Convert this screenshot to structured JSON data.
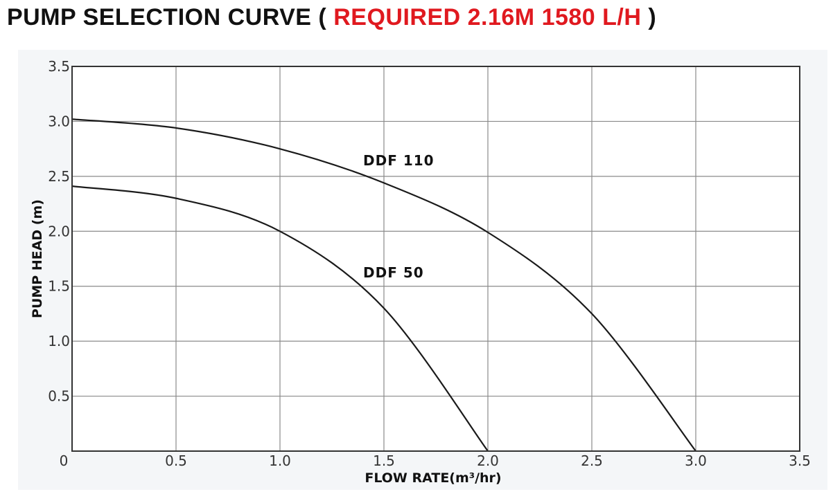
{
  "header": {
    "title_prefix": "PUMP SELECTION CURVE (",
    "title_highlight": "REQUIRED 2.16M 1580 L/H",
    "title_suffix": ")"
  },
  "colors": {
    "highlight": "#e0191f",
    "curve": "#1a1a1a",
    "grid": "#8a8a8a",
    "background_panel": "#f4f6f8"
  },
  "chart_data": {
    "type": "line",
    "xlabel": "FLOW RATE(m³/hr)",
    "ylabel": "PUMP HEAD (m)",
    "xlim": [
      0,
      3.5
    ],
    "ylim": [
      0,
      3.5
    ],
    "xticks": [
      {
        "v": 0,
        "label": "0"
      },
      {
        "v": 0.5,
        "label": "0.5"
      },
      {
        "v": 1.0,
        "label": "1.0"
      },
      {
        "v": 1.5,
        "label": "1.5"
      },
      {
        "v": 2.0,
        "label": "2.0"
      },
      {
        "v": 2.5,
        "label": "2.5"
      },
      {
        "v": 3.0,
        "label": "3.0"
      },
      {
        "v": 3.5,
        "label": "3.5"
      }
    ],
    "yticks": [
      {
        "v": 0.5,
        "label": "0.5"
      },
      {
        "v": 1.0,
        "label": "1.0"
      },
      {
        "v": 1.5,
        "label": "1.5"
      },
      {
        "v": 2.0,
        "label": "2.0"
      },
      {
        "v": 2.5,
        "label": "2.5"
      },
      {
        "v": 3.0,
        "label": "3.0"
      },
      {
        "v": 3.5,
        "label": "3.5"
      }
    ],
    "grid": true,
    "series": [
      {
        "name": "DDF 110",
        "x": [
          0,
          0.5,
          1.0,
          1.5,
          2.0,
          2.5,
          3.0
        ],
        "y": [
          3.02,
          2.94,
          2.75,
          2.44,
          1.99,
          1.25,
          0
        ],
        "label_at": [
          1.4,
          2.6
        ]
      },
      {
        "name": "DDF 50",
        "x": [
          0,
          0.5,
          1.0,
          1.5,
          2.0
        ],
        "y": [
          2.41,
          2.3,
          2.0,
          1.3,
          0
        ],
        "label_at": [
          1.4,
          1.58
        ]
      }
    ]
  }
}
